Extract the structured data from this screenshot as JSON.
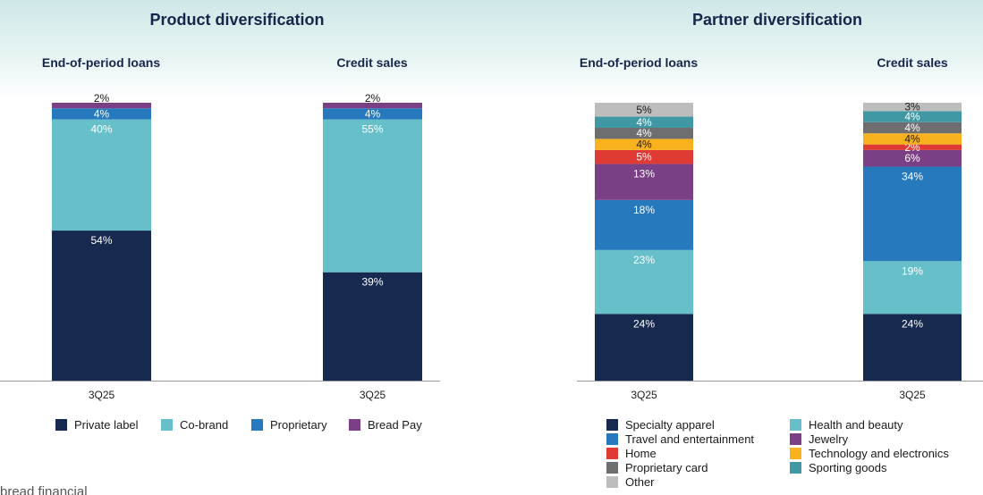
{
  "colors": {
    "private_label": "#16294f",
    "co_brand": "#66bfc9",
    "proprietary": "#2679bd",
    "bread_pay": "#7a3f85",
    "specialty_apparel": "#16294f",
    "health_beauty": "#66bfc9",
    "travel": "#2679bd",
    "jewelry": "#7a3f85",
    "home": "#e03a35",
    "technology": "#f7b21e",
    "proprietary_card": "#6e6e70",
    "sporting_goods": "#3f98a3",
    "other": "#bdbdbd"
  },
  "sections": {
    "product_title": "Product diversification",
    "partner_title": "Partner diversification"
  },
  "chart_data": [
    {
      "type": "stacked-bar",
      "title": "Product diversification",
      "column_labels": [
        "End-of-period loans",
        "Credit sales"
      ],
      "categories": [
        "3Q25",
        "3Q25"
      ],
      "series": [
        {
          "name": "Private label",
          "key": "private_label",
          "values": [
            54,
            39
          ]
        },
        {
          "name": "Co-brand",
          "key": "co_brand",
          "values": [
            40,
            55
          ]
        },
        {
          "name": "Proprietary",
          "key": "proprietary",
          "values": [
            4,
            4
          ]
        },
        {
          "name": "Bread Pay",
          "key": "bread_pay",
          "values": [
            2,
            2
          ]
        }
      ],
      "ylim": [
        0,
        100
      ]
    },
    {
      "type": "stacked-bar",
      "title": "Partner diversification",
      "column_labels": [
        "End-of-period loans",
        "Credit sales"
      ],
      "categories": [
        "3Q25",
        "3Q25"
      ],
      "series": [
        {
          "name": "Specialty apparel",
          "key": "specialty_apparel",
          "values": [
            24,
            24
          ]
        },
        {
          "name": "Health and beauty",
          "key": "health_beauty",
          "values": [
            23,
            19
          ]
        },
        {
          "name": "Travel and entertainment",
          "key": "travel",
          "values": [
            18,
            34
          ]
        },
        {
          "name": "Jewelry",
          "key": "jewelry",
          "values": [
            13,
            6
          ]
        },
        {
          "name": "Home",
          "key": "home",
          "values": [
            5,
            2
          ]
        },
        {
          "name": "Technology and electronics",
          "key": "technology",
          "values": [
            4,
            4
          ]
        },
        {
          "name": "Proprietary card",
          "key": "proprietary_card",
          "values": [
            4,
            4
          ]
        },
        {
          "name": "Sporting goods",
          "key": "sporting_goods",
          "values": [
            4,
            4
          ]
        },
        {
          "name": "Other",
          "key": "other",
          "values": [
            5,
            3
          ]
        }
      ],
      "ylim": [
        0,
        100
      ]
    }
  ],
  "legend_product": [
    {
      "label": "Private label",
      "key": "private_label"
    },
    {
      "label": "Co-brand",
      "key": "co_brand"
    },
    {
      "label": "Proprietary",
      "key": "proprietary"
    },
    {
      "label": "Bread Pay",
      "key": "bread_pay"
    }
  ],
  "legend_partner": [
    {
      "label": "Specialty apparel",
      "key": "specialty_apparel"
    },
    {
      "label": "Health and beauty",
      "key": "health_beauty"
    },
    {
      "label": "Travel and entertainment",
      "key": "travel"
    },
    {
      "label": "Jewelry",
      "key": "jewelry"
    },
    {
      "label": "Home",
      "key": "home"
    },
    {
      "label": "Technology and electronics",
      "key": "technology"
    },
    {
      "label": "Proprietary card",
      "key": "proprietary_card"
    },
    {
      "label": "Sporting goods",
      "key": "sporting_goods"
    },
    {
      "label": "Other",
      "key": "other"
    }
  ],
  "footer": {
    "logo_text": "bread financial"
  }
}
